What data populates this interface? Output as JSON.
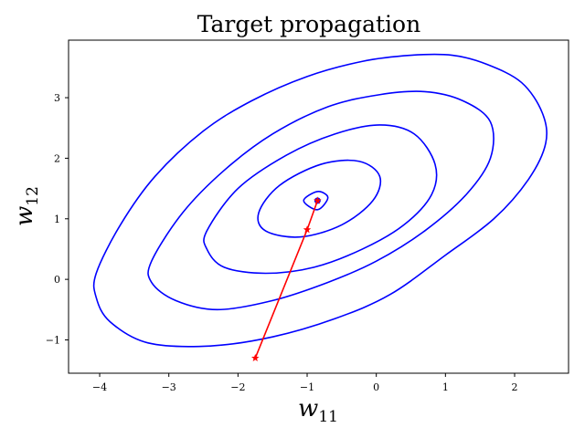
{
  "chart_data": {
    "type": "line",
    "title": "Target propagation",
    "xlabel": {
      "base": "w",
      "sub": "11"
    },
    "ylabel": {
      "base": "w",
      "sub": "12"
    },
    "xlim": [
      -4.45,
      2.78
    ],
    "ylim": [
      -1.55,
      3.95
    ],
    "x_ticks": [
      -4,
      -3,
      -2,
      -1,
      0,
      1,
      2
    ],
    "x_tick_labels": [
      "−4",
      "−3",
      "−2",
      "−1",
      "0",
      "1",
      "2"
    ],
    "y_ticks": [
      -1,
      0,
      1,
      2,
      3
    ],
    "y_tick_labels": [
      "−1",
      "0",
      "1",
      "2",
      "3"
    ],
    "grid": false,
    "contours": {
      "color": "#0000ff",
      "center": [
        -0.85,
        1.3
      ],
      "levels": [
        {
          "points": [
            [
              -0.85,
              1.45
            ],
            [
              -1.05,
              1.3
            ],
            [
              -0.85,
              1.15
            ],
            [
              -0.7,
              1.35
            ],
            [
              -0.85,
              1.45
            ]
          ]
        },
        {
          "points": [
            [
              -1.7,
              1.1
            ],
            [
              -1.4,
              1.55
            ],
            [
              -0.8,
              1.9
            ],
            [
              -0.25,
              1.95
            ],
            [
              0.05,
              1.7
            ],
            [
              -0.05,
              1.3
            ],
            [
              -0.5,
              0.9
            ],
            [
              -1.1,
              0.7
            ],
            [
              -1.6,
              0.8
            ],
            [
              -1.7,
              1.1
            ]
          ]
        },
        {
          "points": [
            [
              -2.45,
              0.8
            ],
            [
              -2.0,
              1.5
            ],
            [
              -1.3,
              2.05
            ],
            [
              -0.6,
              2.4
            ],
            [
              0.05,
              2.55
            ],
            [
              0.55,
              2.4
            ],
            [
              0.85,
              1.9
            ],
            [
              0.8,
              1.4
            ],
            [
              0.4,
              0.9
            ],
            [
              -0.2,
              0.5
            ],
            [
              -0.9,
              0.2
            ],
            [
              -1.6,
              0.1
            ],
            [
              -2.2,
              0.2
            ],
            [
              -2.45,
              0.5
            ],
            [
              -2.45,
              0.8
            ]
          ]
        },
        {
          "points": [
            [
              -3.25,
              0.3
            ],
            [
              -2.8,
              1.1
            ],
            [
              -2.2,
              1.8
            ],
            [
              -1.5,
              2.4
            ],
            [
              -0.7,
              2.85
            ],
            [
              0.05,
              3.05
            ],
            [
              0.7,
              3.1
            ],
            [
              1.25,
              2.95
            ],
            [
              1.65,
              2.6
            ],
            [
              1.65,
              2.0
            ],
            [
              1.3,
              1.4
            ],
            [
              0.7,
              0.8
            ],
            [
              0.0,
              0.3
            ],
            [
              -0.7,
              -0.05
            ],
            [
              -1.5,
              -0.35
            ],
            [
              -2.3,
              -0.5
            ],
            [
              -2.9,
              -0.35
            ],
            [
              -3.25,
              -0.05
            ],
            [
              -3.25,
              0.3
            ]
          ]
        },
        {
          "points": [
            [
              -4.05,
              0.1
            ],
            [
              -3.7,
              0.9
            ],
            [
              -3.2,
              1.7
            ],
            [
              -2.5,
              2.45
            ],
            [
              -1.8,
              2.95
            ],
            [
              -1.0,
              3.35
            ],
            [
              -0.2,
              3.6
            ],
            [
              0.5,
              3.7
            ],
            [
              1.1,
              3.7
            ],
            [
              1.6,
              3.55
            ],
            [
              2.1,
              3.25
            ],
            [
              2.4,
              2.75
            ],
            [
              2.45,
              2.25
            ],
            [
              2.2,
              1.65
            ],
            [
              1.7,
              1.0
            ],
            [
              1.0,
              0.4
            ],
            [
              0.2,
              -0.25
            ],
            [
              -0.6,
              -0.65
            ],
            [
              -1.5,
              -0.95
            ],
            [
              -2.4,
              -1.1
            ],
            [
              -3.3,
              -1.05
            ],
            [
              -3.85,
              -0.7
            ],
            [
              -4.05,
              -0.3
            ],
            [
              -4.05,
              0.1
            ]
          ]
        }
      ]
    },
    "path": {
      "color": "#ff0000",
      "points": [
        [
          -1.75,
          -1.3
        ],
        [
          -1.0,
          0.82
        ],
        [
          -0.85,
          1.3
        ]
      ],
      "marker": "star"
    }
  }
}
